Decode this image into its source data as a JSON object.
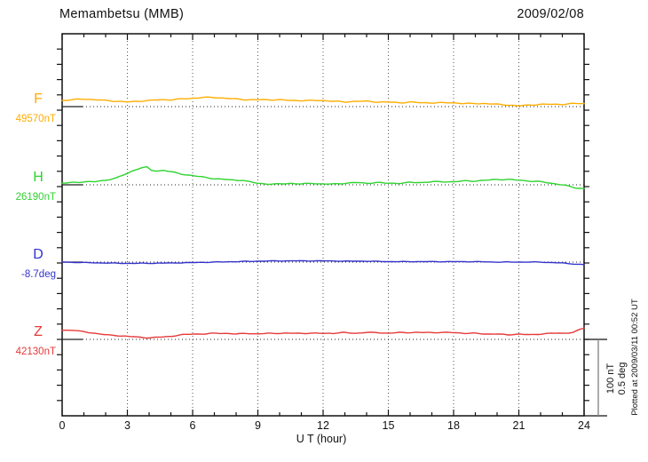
{
  "header": {
    "title": "Memambetsu (MMB)",
    "date": "2009/02/08"
  },
  "footer": {
    "plotted_at": "Plotted at 2009/03/11 00:52 UT"
  },
  "scale_bar_labels": {
    "nT": "100 nT",
    "deg": "0.5 deg"
  },
  "chart_data": {
    "type": "line",
    "title": "Memambetsu (MMB)",
    "date": "2009/02/08",
    "xlabel": "U T (hour)",
    "x_range": [
      0,
      24
    ],
    "x_major_ticks": [
      0,
      3,
      6,
      9,
      12,
      15,
      18,
      21,
      24
    ],
    "x_minor_step_hours": 1,
    "grid": "dotted vertical lines every 3 hours; dotted horizontal baseline per trace",
    "scale_bar": {
      "nT_label": "100 nT",
      "deg_label": "0.5 deg",
      "span_nT": 100,
      "span_deg": 0.5
    },
    "series": [
      {
        "name": "F",
        "unit": "nT",
        "baseline_value": 49570,
        "baseline_label": "49570nT",
        "color": "#FFAD00",
        "points": [
          [
            0,
            8
          ],
          [
            0.5,
            9
          ],
          [
            1,
            10
          ],
          [
            1.5,
            9
          ],
          [
            2,
            8
          ],
          [
            2.5,
            7
          ],
          [
            3,
            6
          ],
          [
            3.5,
            7
          ],
          [
            4,
            8
          ],
          [
            4.5,
            9
          ],
          [
            5,
            9
          ],
          [
            5.5,
            10
          ],
          [
            6,
            11
          ],
          [
            6.5,
            12
          ],
          [
            7,
            12
          ],
          [
            7.5,
            11
          ],
          [
            8,
            10
          ],
          [
            8.5,
            9
          ],
          [
            9,
            9
          ],
          [
            9.5,
            9
          ],
          [
            10,
            9
          ],
          [
            10.5,
            8
          ],
          [
            11,
            8
          ],
          [
            11.5,
            8
          ],
          [
            12,
            8
          ],
          [
            12.5,
            7
          ],
          [
            13,
            6
          ],
          [
            13.5,
            7
          ],
          [
            14,
            7
          ],
          [
            14.5,
            6
          ],
          [
            15,
            6
          ],
          [
            15.5,
            5
          ],
          [
            16,
            6
          ],
          [
            16.5,
            5
          ],
          [
            17,
            5
          ],
          [
            17.5,
            5
          ],
          [
            18,
            5
          ],
          [
            18.5,
            4
          ],
          [
            19,
            4
          ],
          [
            19.5,
            4
          ],
          [
            20,
            3
          ],
          [
            20.5,
            2
          ],
          [
            21,
            1
          ],
          [
            21.5,
            2
          ],
          [
            22,
            3
          ],
          [
            22.5,
            3
          ],
          [
            23,
            3
          ],
          [
            23.5,
            4
          ],
          [
            24,
            4
          ]
        ]
      },
      {
        "name": "H",
        "unit": "nT",
        "baseline_value": 26190,
        "baseline_label": "26190nT",
        "color": "#2FD32F",
        "points": [
          [
            0,
            2
          ],
          [
            0.5,
            3
          ],
          [
            1,
            4
          ],
          [
            1.5,
            4
          ],
          [
            2,
            6
          ],
          [
            2.5,
            9
          ],
          [
            3,
            15
          ],
          [
            3.3,
            19
          ],
          [
            3.6,
            22
          ],
          [
            3.9,
            23
          ],
          [
            4.1,
            19
          ],
          [
            4.4,
            18
          ],
          [
            4.7,
            19
          ],
          [
            5,
            17
          ],
          [
            5.5,
            14
          ],
          [
            6,
            12
          ],
          [
            6.5,
            10
          ],
          [
            7,
            8
          ],
          [
            7.5,
            7
          ],
          [
            8,
            6
          ],
          [
            8.3,
            6
          ],
          [
            8.6,
            4
          ],
          [
            9,
            2
          ],
          [
            9.5,
            1
          ],
          [
            10,
            1
          ],
          [
            10.5,
            2
          ],
          [
            11,
            1
          ],
          [
            11.5,
            2
          ],
          [
            12,
            1
          ],
          [
            12.5,
            1
          ],
          [
            13,
            2
          ],
          [
            13.5,
            3
          ],
          [
            14,
            2
          ],
          [
            14.5,
            3
          ],
          [
            15,
            2
          ],
          [
            15.5,
            2
          ],
          [
            16,
            3
          ],
          [
            16.5,
            3
          ],
          [
            17,
            4
          ],
          [
            17.5,
            4
          ],
          [
            18,
            4
          ],
          [
            18.5,
            5
          ],
          [
            19,
            5
          ],
          [
            19.5,
            6
          ],
          [
            20,
            7
          ],
          [
            20.5,
            7
          ],
          [
            21,
            6
          ],
          [
            21.5,
            5
          ],
          [
            22,
            4
          ],
          [
            22.5,
            2
          ],
          [
            23,
            0
          ],
          [
            23.3,
            -2
          ],
          [
            23.6,
            -4
          ],
          [
            24,
            -5
          ]
        ]
      },
      {
        "name": "D",
        "unit": "deg",
        "baseline_value": -8.7,
        "baseline_label": "-8.7deg",
        "color": "#3333CC",
        "points": [
          [
            0,
            0
          ],
          [
            1,
            -0.003
          ],
          [
            2,
            -0.006
          ],
          [
            3,
            -0.008
          ],
          [
            4,
            -0.008
          ],
          [
            5,
            -0.006
          ],
          [
            6,
            -0.003
          ],
          [
            7,
            0
          ],
          [
            8,
            0.003
          ],
          [
            9,
            0.006
          ],
          [
            10,
            0.008
          ],
          [
            11,
            0.008
          ],
          [
            12,
            0.008
          ],
          [
            13,
            0.006
          ],
          [
            14,
            0.006
          ],
          [
            15,
            0.003
          ],
          [
            16,
            0.003
          ],
          [
            17,
            0.003
          ],
          [
            18,
            0.003
          ],
          [
            19,
            0.003
          ],
          [
            20,
            0
          ],
          [
            21,
            0
          ],
          [
            22,
            0
          ],
          [
            22.5,
            -0.003
          ],
          [
            23,
            -0.006
          ],
          [
            23.5,
            -0.012
          ],
          [
            24,
            -0.017
          ]
        ]
      },
      {
        "name": "Z",
        "unit": "nT",
        "baseline_value": 42130,
        "baseline_label": "42130nT",
        "color": "#E63939",
        "points": [
          [
            0,
            12
          ],
          [
            0.5,
            12
          ],
          [
            1,
            10
          ],
          [
            1.5,
            8
          ],
          [
            2,
            6
          ],
          [
            2.5,
            5
          ],
          [
            3,
            4
          ],
          [
            3.5,
            3
          ],
          [
            4,
            2
          ],
          [
            4.5,
            3
          ],
          [
            5,
            4
          ],
          [
            5.5,
            6
          ],
          [
            6,
            7
          ],
          [
            6.5,
            7
          ],
          [
            7,
            8
          ],
          [
            7.5,
            8
          ],
          [
            8,
            7
          ],
          [
            8.5,
            8
          ],
          [
            9,
            7
          ],
          [
            9.5,
            8
          ],
          [
            10,
            8
          ],
          [
            10.5,
            8
          ],
          [
            11,
            8
          ],
          [
            11.5,
            8
          ],
          [
            12,
            8
          ],
          [
            12.5,
            8
          ],
          [
            13,
            9
          ],
          [
            13.5,
            8
          ],
          [
            14,
            9
          ],
          [
            14.5,
            9
          ],
          [
            15,
            8
          ],
          [
            15.5,
            9
          ],
          [
            16,
            9
          ],
          [
            16.5,
            9
          ],
          [
            17,
            9
          ],
          [
            17.5,
            9
          ],
          [
            18,
            9
          ],
          [
            18.5,
            8
          ],
          [
            19,
            8
          ],
          [
            19.5,
            7
          ],
          [
            20,
            7
          ],
          [
            20.5,
            6
          ],
          [
            21,
            7
          ],
          [
            21.5,
            6
          ],
          [
            22,
            7
          ],
          [
            22.5,
            8
          ],
          [
            23,
            8
          ],
          [
            23.5,
            9
          ],
          [
            23.8,
            13
          ],
          [
            24,
            15
          ]
        ]
      }
    ]
  }
}
